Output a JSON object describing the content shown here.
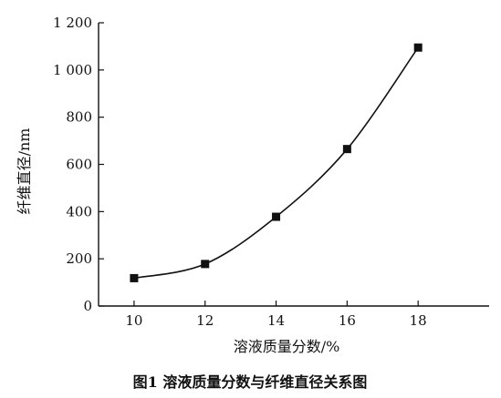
{
  "chart_data": {
    "type": "line",
    "xlabel": "溶液质量分数/%",
    "ylabel": "纤维直径/nm",
    "caption": "图1  溶液质量分数与纤维直径关系图",
    "x": [
      10,
      12,
      14,
      16,
      18
    ],
    "series": [
      {
        "values": [
          118,
          178,
          378,
          665,
          1095
        ]
      }
    ],
    "xlim": [
      9,
      20
    ],
    "ylim": [
      0,
      1200
    ],
    "xticks": [
      10,
      12,
      14,
      16,
      18
    ],
    "xtick_labels": [
      "10",
      "12",
      "14",
      "16",
      "18"
    ],
    "yticks": [
      0,
      200,
      400,
      600,
      800,
      1000,
      1200
    ],
    "ytick_labels": [
      "0",
      "200",
      "400",
      "600",
      "800",
      "1 000",
      "1 200"
    ],
    "grid": false,
    "marker": "square",
    "color": "#111111"
  }
}
